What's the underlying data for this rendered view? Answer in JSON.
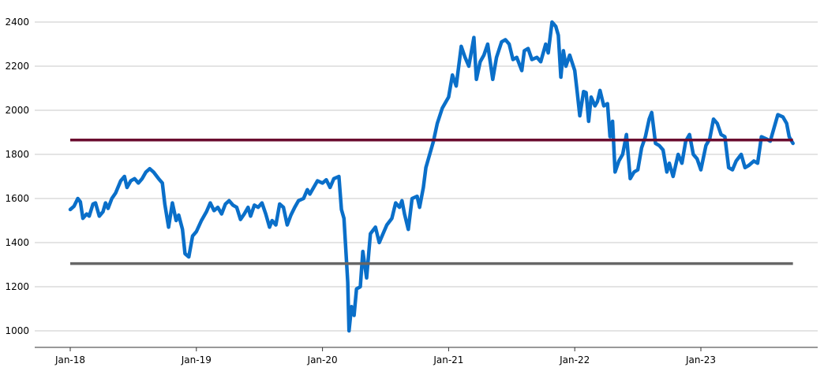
{
  "chart_data": {
    "type": "line",
    "title": "",
    "xlabel": "",
    "ylabel": "",
    "ylim": [
      950,
      2420
    ],
    "yticks": [
      1000,
      1200,
      1400,
      1600,
      1800,
      2000,
      2200,
      2400
    ],
    "xticks": [
      {
        "label": "Jan-18",
        "x": 2018.0
      },
      {
        "label": "Jan-19",
        "x": 2019.0
      },
      {
        "label": "Jan-20",
        "x": 2020.0
      },
      {
        "label": "Jan-21",
        "x": 2021.0
      },
      {
        "label": "Jan-22",
        "x": 2022.0
      },
      {
        "label": "Jan-23",
        "x": 2023.0
      }
    ],
    "xlim": [
      2017.73,
      2023.92
    ],
    "grid": true,
    "legend": "none",
    "series": [
      {
        "color": "#0a6fc9",
        "kind": "line",
        "points": [
          [
            2018.0,
            1550
          ],
          [
            2018.03,
            1565
          ],
          [
            2018.06,
            1600
          ],
          [
            2018.08,
            1585
          ],
          [
            2018.1,
            1510
          ],
          [
            2018.13,
            1530
          ],
          [
            2018.15,
            1520
          ],
          [
            2018.18,
            1575
          ],
          [
            2018.2,
            1580
          ],
          [
            2018.23,
            1520
          ],
          [
            2018.26,
            1540
          ],
          [
            2018.28,
            1580
          ],
          [
            2018.3,
            1555
          ],
          [
            2018.33,
            1600
          ],
          [
            2018.36,
            1625
          ],
          [
            2018.4,
            1680
          ],
          [
            2018.43,
            1700
          ],
          [
            2018.45,
            1650
          ],
          [
            2018.48,
            1680
          ],
          [
            2018.51,
            1690
          ],
          [
            2018.54,
            1670
          ],
          [
            2018.57,
            1690
          ],
          [
            2018.6,
            1720
          ],
          [
            2018.63,
            1735
          ],
          [
            2018.66,
            1720
          ],
          [
            2018.7,
            1690
          ],
          [
            2018.73,
            1670
          ],
          [
            2018.75,
            1575
          ],
          [
            2018.78,
            1470
          ],
          [
            2018.81,
            1580
          ],
          [
            2018.84,
            1500
          ],
          [
            2018.86,
            1525
          ],
          [
            2018.89,
            1460
          ],
          [
            2018.91,
            1350
          ],
          [
            2018.94,
            1335
          ],
          [
            2018.97,
            1430
          ],
          [
            2019.0,
            1450
          ],
          [
            2019.04,
            1500
          ],
          [
            2019.08,
            1540
          ],
          [
            2019.11,
            1580
          ],
          [
            2019.14,
            1545
          ],
          [
            2019.17,
            1560
          ],
          [
            2019.2,
            1530
          ],
          [
            2019.23,
            1575
          ],
          [
            2019.26,
            1590
          ],
          [
            2019.29,
            1570
          ],
          [
            2019.32,
            1560
          ],
          [
            2019.35,
            1505
          ],
          [
            2019.38,
            1530
          ],
          [
            2019.41,
            1560
          ],
          [
            2019.43,
            1520
          ],
          [
            2019.46,
            1570
          ],
          [
            2019.49,
            1560
          ],
          [
            2019.52,
            1580
          ],
          [
            2019.55,
            1530
          ],
          [
            2019.58,
            1470
          ],
          [
            2019.6,
            1500
          ],
          [
            2019.63,
            1480
          ],
          [
            2019.66,
            1575
          ],
          [
            2019.69,
            1560
          ],
          [
            2019.72,
            1480
          ],
          [
            2019.75,
            1525
          ],
          [
            2019.78,
            1560
          ],
          [
            2019.81,
            1590
          ],
          [
            2019.85,
            1600
          ],
          [
            2019.88,
            1640
          ],
          [
            2019.9,
            1620
          ],
          [
            2019.93,
            1650
          ],
          [
            2019.96,
            1680
          ],
          [
            2020.0,
            1670
          ],
          [
            2020.03,
            1685
          ],
          [
            2020.06,
            1650
          ],
          [
            2020.09,
            1690
          ],
          [
            2020.13,
            1700
          ],
          [
            2020.15,
            1550
          ],
          [
            2020.17,
            1510
          ],
          [
            2020.2,
            1220
          ],
          [
            2020.21,
            1000
          ],
          [
            2020.23,
            1110
          ],
          [
            2020.25,
            1070
          ],
          [
            2020.27,
            1190
          ],
          [
            2020.3,
            1200
          ],
          [
            2020.32,
            1360
          ],
          [
            2020.35,
            1240
          ],
          [
            2020.38,
            1440
          ],
          [
            2020.42,
            1470
          ],
          [
            2020.45,
            1400
          ],
          [
            2020.48,
            1440
          ],
          [
            2020.51,
            1480
          ],
          [
            2020.55,
            1510
          ],
          [
            2020.58,
            1580
          ],
          [
            2020.61,
            1560
          ],
          [
            2020.63,
            1590
          ],
          [
            2020.65,
            1530
          ],
          [
            2020.68,
            1460
          ],
          [
            2020.71,
            1600
          ],
          [
            2020.75,
            1610
          ],
          [
            2020.77,
            1560
          ],
          [
            2020.8,
            1650
          ],
          [
            2020.82,
            1740
          ],
          [
            2020.85,
            1800
          ],
          [
            2020.88,
            1860
          ],
          [
            2020.91,
            1940
          ],
          [
            2020.95,
            2010
          ],
          [
            2021.0,
            2060
          ],
          [
            2021.03,
            2160
          ],
          [
            2021.06,
            2110
          ],
          [
            2021.1,
            2290
          ],
          [
            2021.13,
            2240
          ],
          [
            2021.16,
            2200
          ],
          [
            2021.2,
            2330
          ],
          [
            2021.22,
            2140
          ],
          [
            2021.25,
            2220
          ],
          [
            2021.28,
            2250
          ],
          [
            2021.31,
            2300
          ],
          [
            2021.35,
            2140
          ],
          [
            2021.38,
            2240
          ],
          [
            2021.42,
            2310
          ],
          [
            2021.45,
            2320
          ],
          [
            2021.48,
            2300
          ],
          [
            2021.51,
            2230
          ],
          [
            2021.54,
            2240
          ],
          [
            2021.58,
            2180
          ],
          [
            2021.6,
            2270
          ],
          [
            2021.63,
            2280
          ],
          [
            2021.66,
            2230
          ],
          [
            2021.7,
            2240
          ],
          [
            2021.73,
            2220
          ],
          [
            2021.77,
            2300
          ],
          [
            2021.79,
            2260
          ],
          [
            2021.82,
            2400
          ],
          [
            2021.85,
            2380
          ],
          [
            2021.87,
            2340
          ],
          [
            2021.89,
            2150
          ],
          [
            2021.91,
            2270
          ],
          [
            2021.93,
            2200
          ],
          [
            2021.96,
            2250
          ],
          [
            2022.0,
            2180
          ],
          [
            2022.02,
            2080
          ],
          [
            2022.04,
            1975
          ],
          [
            2022.07,
            2085
          ],
          [
            2022.09,
            2080
          ],
          [
            2022.11,
            1950
          ],
          [
            2022.13,
            2060
          ],
          [
            2022.16,
            2020
          ],
          [
            2022.18,
            2040
          ],
          [
            2022.2,
            2090
          ],
          [
            2022.23,
            2020
          ],
          [
            2022.26,
            2030
          ],
          [
            2022.28,
            1880
          ],
          [
            2022.3,
            1950
          ],
          [
            2022.32,
            1720
          ],
          [
            2022.35,
            1770
          ],
          [
            2022.38,
            1800
          ],
          [
            2022.41,
            1890
          ],
          [
            2022.44,
            1690
          ],
          [
            2022.47,
            1720
          ],
          [
            2022.5,
            1730
          ],
          [
            2022.53,
            1830
          ],
          [
            2022.56,
            1880
          ],
          [
            2022.59,
            1960
          ],
          [
            2022.61,
            1990
          ],
          [
            2022.64,
            1850
          ],
          [
            2022.67,
            1840
          ],
          [
            2022.7,
            1820
          ],
          [
            2022.73,
            1720
          ],
          [
            2022.75,
            1760
          ],
          [
            2022.78,
            1700
          ],
          [
            2022.82,
            1800
          ],
          [
            2022.85,
            1760
          ],
          [
            2022.88,
            1860
          ],
          [
            2022.91,
            1890
          ],
          [
            2022.94,
            1800
          ],
          [
            2022.97,
            1780
          ],
          [
            2023.0,
            1730
          ],
          [
            2023.04,
            1840
          ],
          [
            2023.07,
            1870
          ],
          [
            2023.1,
            1960
          ],
          [
            2023.13,
            1940
          ],
          [
            2023.16,
            1890
          ],
          [
            2023.19,
            1880
          ],
          [
            2023.22,
            1740
          ],
          [
            2023.25,
            1730
          ],
          [
            2023.28,
            1770
          ],
          [
            2023.32,
            1800
          ],
          [
            2023.35,
            1740
          ],
          [
            2023.38,
            1750
          ],
          [
            2023.42,
            1770
          ],
          [
            2023.45,
            1760
          ],
          [
            2023.48,
            1880
          ],
          [
            2023.52,
            1870
          ],
          [
            2023.55,
            1860
          ],
          [
            2023.58,
            1920
          ],
          [
            2023.61,
            1980
          ],
          [
            2023.65,
            1970
          ],
          [
            2023.68,
            1940
          ],
          [
            2023.7,
            1880
          ],
          [
            2023.72,
            1860
          ],
          [
            2023.73,
            1850
          ]
        ]
      },
      {
        "color": "#6b0c2f",
        "kind": "hline",
        "y": 1865,
        "from": 2018.0,
        "to": 2023.73
      },
      {
        "color": "#666666",
        "kind": "hline",
        "y": 1305,
        "from": 2018.0,
        "to": 2023.73
      }
    ]
  }
}
